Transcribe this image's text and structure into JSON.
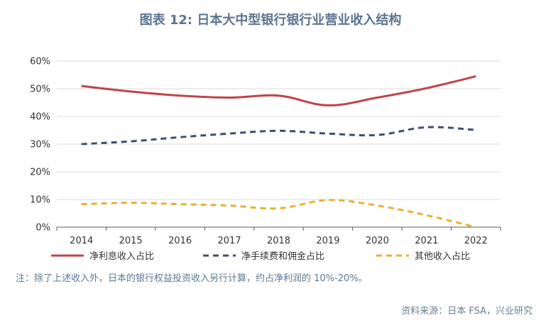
{
  "chart_data": {
    "type": "line",
    "title": "图表 12: 日本大中型银行银行业营业收入结构",
    "categories": [
      "2014",
      "2015",
      "2016",
      "2017",
      "2018",
      "2019",
      "2020",
      "2021",
      "2022"
    ],
    "series": [
      {
        "name": "净利息收入占比",
        "values": [
          51,
          49,
          47.5,
          46.8,
          47.5,
          44,
          46.8,
          50.2,
          54.5
        ],
        "color": "#c0444a",
        "dash": "solid"
      },
      {
        "name": "净手续费和佣金占比",
        "values": [
          30,
          31,
          32.5,
          33.8,
          34.8,
          33.8,
          33.3,
          36.1,
          35.1
        ],
        "color": "#3d4f6b",
        "dash": "dashed"
      },
      {
        "name": "其他收入占比",
        "values": [
          8.3,
          8.8,
          8.3,
          7.8,
          6.8,
          9.8,
          7.8,
          4.3,
          0
        ],
        "color": "#e8b12f",
        "dash": "dashed"
      }
    ],
    "yticks": [
      "0%",
      "10%",
      "20%",
      "30%",
      "40%",
      "50%",
      "60%"
    ],
    "ylim": [
      0,
      60
    ],
    "grid": true,
    "legend_position": "bottom",
    "xlabel": "",
    "ylabel": ""
  },
  "note": "注：除了上述收入外，日本的银行权益投资收入另行计算，约占净利润的 10%-20%。",
  "source": "资料来源：日本 FSA，兴业研究",
  "colors": {
    "title": "#5b7490",
    "grid": "#d9d9d9",
    "axis": "#595959",
    "tick": "#333333",
    "note": "#5b7a95"
  }
}
